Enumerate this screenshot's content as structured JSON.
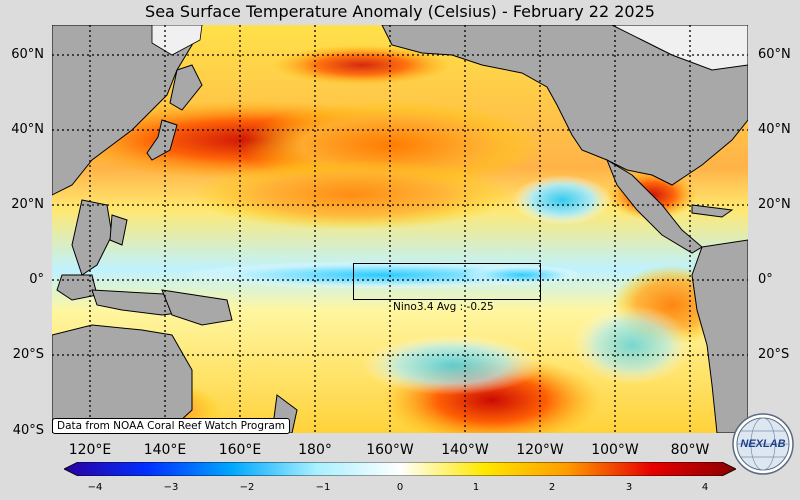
{
  "title": "Sea Surface Temperature Anomaly (Celsius) - February 22 2025",
  "latitudes": [
    "60°N",
    "40°N",
    "20°N",
    "0°",
    "20°S",
    "40°S"
  ],
  "longitudes": [
    "120°E",
    "140°E",
    "160°E",
    "180°",
    "160°W",
    "140°W",
    "120°W",
    "100°W",
    "80°W"
  ],
  "colorbar": {
    "ticks": [
      "−4",
      "−3",
      "−2",
      "−1",
      "0",
      "1",
      "2",
      "3",
      "4"
    ],
    "colors": [
      "#2a00a0",
      "#0030ff",
      "#00a8ff",
      "#a8f0ff",
      "#ffffff",
      "#ffe800",
      "#ff9a00",
      "#e60000",
      "#8a0000"
    ]
  },
  "nino": {
    "label": "Nino3.4 Avg : -0.25",
    "avg": -0.25
  },
  "credit": "Data from NOAA Coral Reef Watch Program",
  "logo_text": "NEXLAB",
  "map_colors": {
    "land": "#a8a8a8",
    "ice": "#f0f0f0",
    "cold": "#29d0ff",
    "neutral": "#ffffff",
    "warm": "#ffd500",
    "hot": "#ff6a00",
    "very_hot": "#d40000"
  }
}
